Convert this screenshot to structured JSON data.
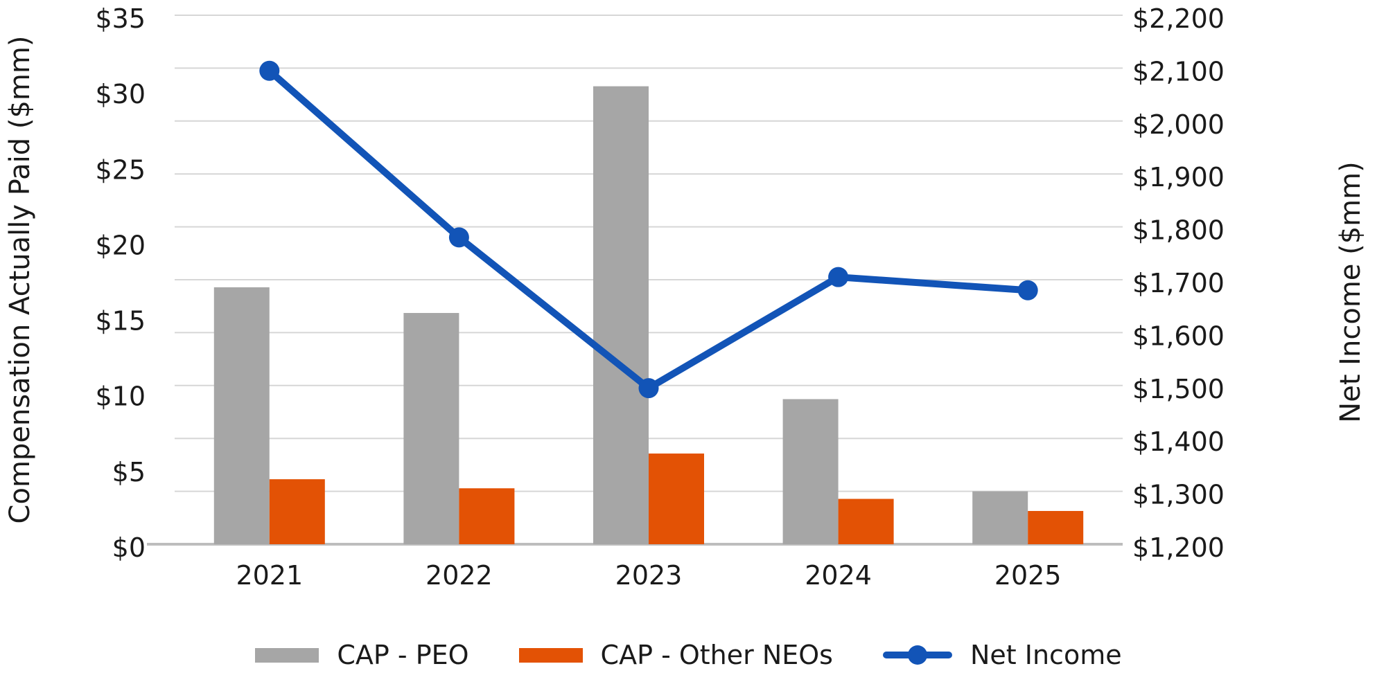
{
  "chart_data": {
    "type": "combo-bar-line",
    "title": "",
    "categories": [
      "2021",
      "2022",
      "2023",
      "2024",
      "2025"
    ],
    "series": [
      {
        "name": "CAP - PEO",
        "type": "bar",
        "axis": "left",
        "color": "#A6A6A6",
        "values": [
          17.0,
          15.3,
          30.3,
          9.6,
          3.5
        ]
      },
      {
        "name": "CAP - Other NEOs",
        "type": "bar",
        "axis": "left",
        "color": "#E35205",
        "values": [
          4.3,
          3.7,
          6.0,
          3.0,
          2.2
        ]
      },
      {
        "name": "Net Income",
        "type": "line",
        "axis": "right",
        "color": "#1254B7",
        "values": [
          2095,
          1780,
          1495,
          1705,
          1680
        ]
      }
    ],
    "left_axis": {
      "title": "Compensation Actually Paid ($mm)",
      "min": 0,
      "max": 35,
      "step": 5,
      "tick_labels": [
        "$0",
        "$5",
        "$10",
        "$15",
        "$20",
        "$25",
        "$30",
        "$35"
      ]
    },
    "right_axis": {
      "title": "Net Income ($mm)",
      "min": 1200,
      "max": 2200,
      "step": 100,
      "tick_labels": [
        "$1,200",
        "$1,300",
        "$1,400",
        "$1,500",
        "$1,600",
        "$1,700",
        "$1,800",
        "$1,900",
        "$2,000",
        "$2,100",
        "$2,200"
      ]
    },
    "grid": true,
    "legend_position": "bottom",
    "colors": {
      "gridline": "#D6D6D6",
      "baseline": "#BDBDBD",
      "text": "#1A1A1A",
      "background": "#FFFFFF"
    }
  }
}
